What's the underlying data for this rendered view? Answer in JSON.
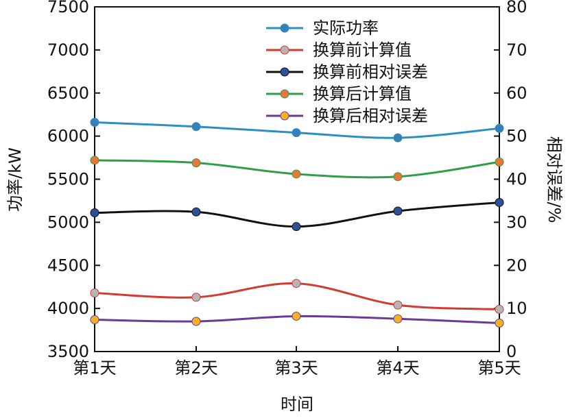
{
  "chart_data": {
    "type": "line",
    "title": "",
    "xlabel": "时间",
    "ylabel_left": "功率/kW",
    "ylabel_right": "相对误差/%",
    "categories": [
      "第1天",
      "第2天",
      "第3天",
      "第4天",
      "第5天"
    ],
    "ylim_left": [
      3500,
      7500
    ],
    "ylim_right": [
      0,
      80
    ],
    "yticks_left": [
      "3500",
      "4000",
      "4500",
      "5000",
      "5500",
      "6000",
      "6500",
      "7000",
      "7500"
    ],
    "yticks_right": [
      "0",
      "10",
      "20",
      "30",
      "40",
      "50",
      "60",
      "70",
      "80"
    ],
    "legend_position": "top-right",
    "series": [
      {
        "name": "实际功率",
        "axis": "left",
        "line_color": "#2a8fc1",
        "marker_color": "#3a7fb8",
        "values": [
          6160,
          6110,
          6040,
          5980,
          6090
        ]
      },
      {
        "name": "换算前计算值",
        "axis": "left",
        "line_color": "#d43a30",
        "marker_color": "#b5b5b5",
        "values": [
          4180,
          4130,
          4290,
          4040,
          3990
        ]
      },
      {
        "name": "换算前相对误差",
        "axis": "left",
        "line_color": "#111111",
        "marker_color": "#2f4f97",
        "values": [
          5110,
          5120,
          4950,
          5130,
          5230
        ]
      },
      {
        "name": "换算后计算值",
        "axis": "left",
        "line_color": "#2e9e48",
        "marker_color": "#e8763a",
        "values": [
          5720,
          5690,
          5560,
          5530,
          5700
        ]
      },
      {
        "name": "换算后相对误差",
        "axis": "left",
        "line_color": "#6a3a98",
        "marker_color": "#f2b223",
        "values": [
          3870,
          3850,
          3910,
          3880,
          3830
        ]
      }
    ]
  }
}
